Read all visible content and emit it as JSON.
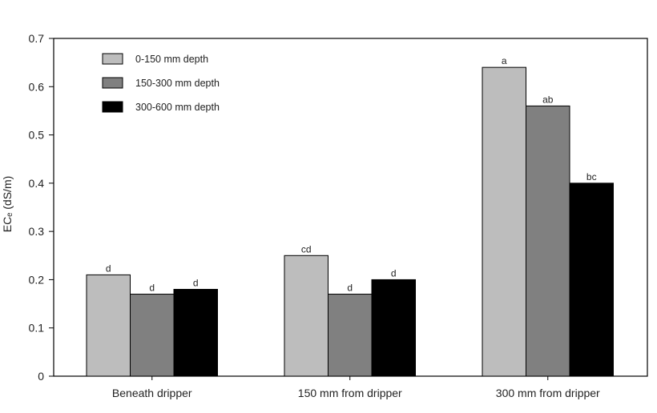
{
  "chart_data": {
    "type": "bar",
    "title": "",
    "xlabel": "",
    "ylabel": "ECₑ (dS/m)",
    "ylim": [
      0,
      0.7
    ],
    "yticks": [
      "0",
      "0.1",
      "0.2",
      "0.3",
      "0.4",
      "0.5",
      "0.6",
      "0.7"
    ],
    "ytick_values": [
      0,
      0.1,
      0.2,
      0.3,
      0.4,
      0.5,
      0.6,
      0.7
    ],
    "categories": [
      "Beneath dripper",
      "150 mm from dripper",
      "300 mm from dripper"
    ],
    "legend_position": "top-left",
    "series": [
      {
        "name": "0-150 mm depth",
        "color": "#bdbdbd",
        "values": [
          0.21,
          0.25,
          0.64
        ],
        "labels": [
          "d",
          "cd",
          "a"
        ]
      },
      {
        "name": "150-300 mm depth",
        "color": "#808080",
        "values": [
          0.17,
          0.17,
          0.56
        ],
        "labels": [
          "d",
          "d",
          "ab"
        ]
      },
      {
        "name": "300-600 mm depth",
        "color": "#000000",
        "values": [
          0.18,
          0.2,
          0.4
        ],
        "labels": [
          "d",
          "d",
          "bc"
        ]
      }
    ],
    "grid": false
  }
}
